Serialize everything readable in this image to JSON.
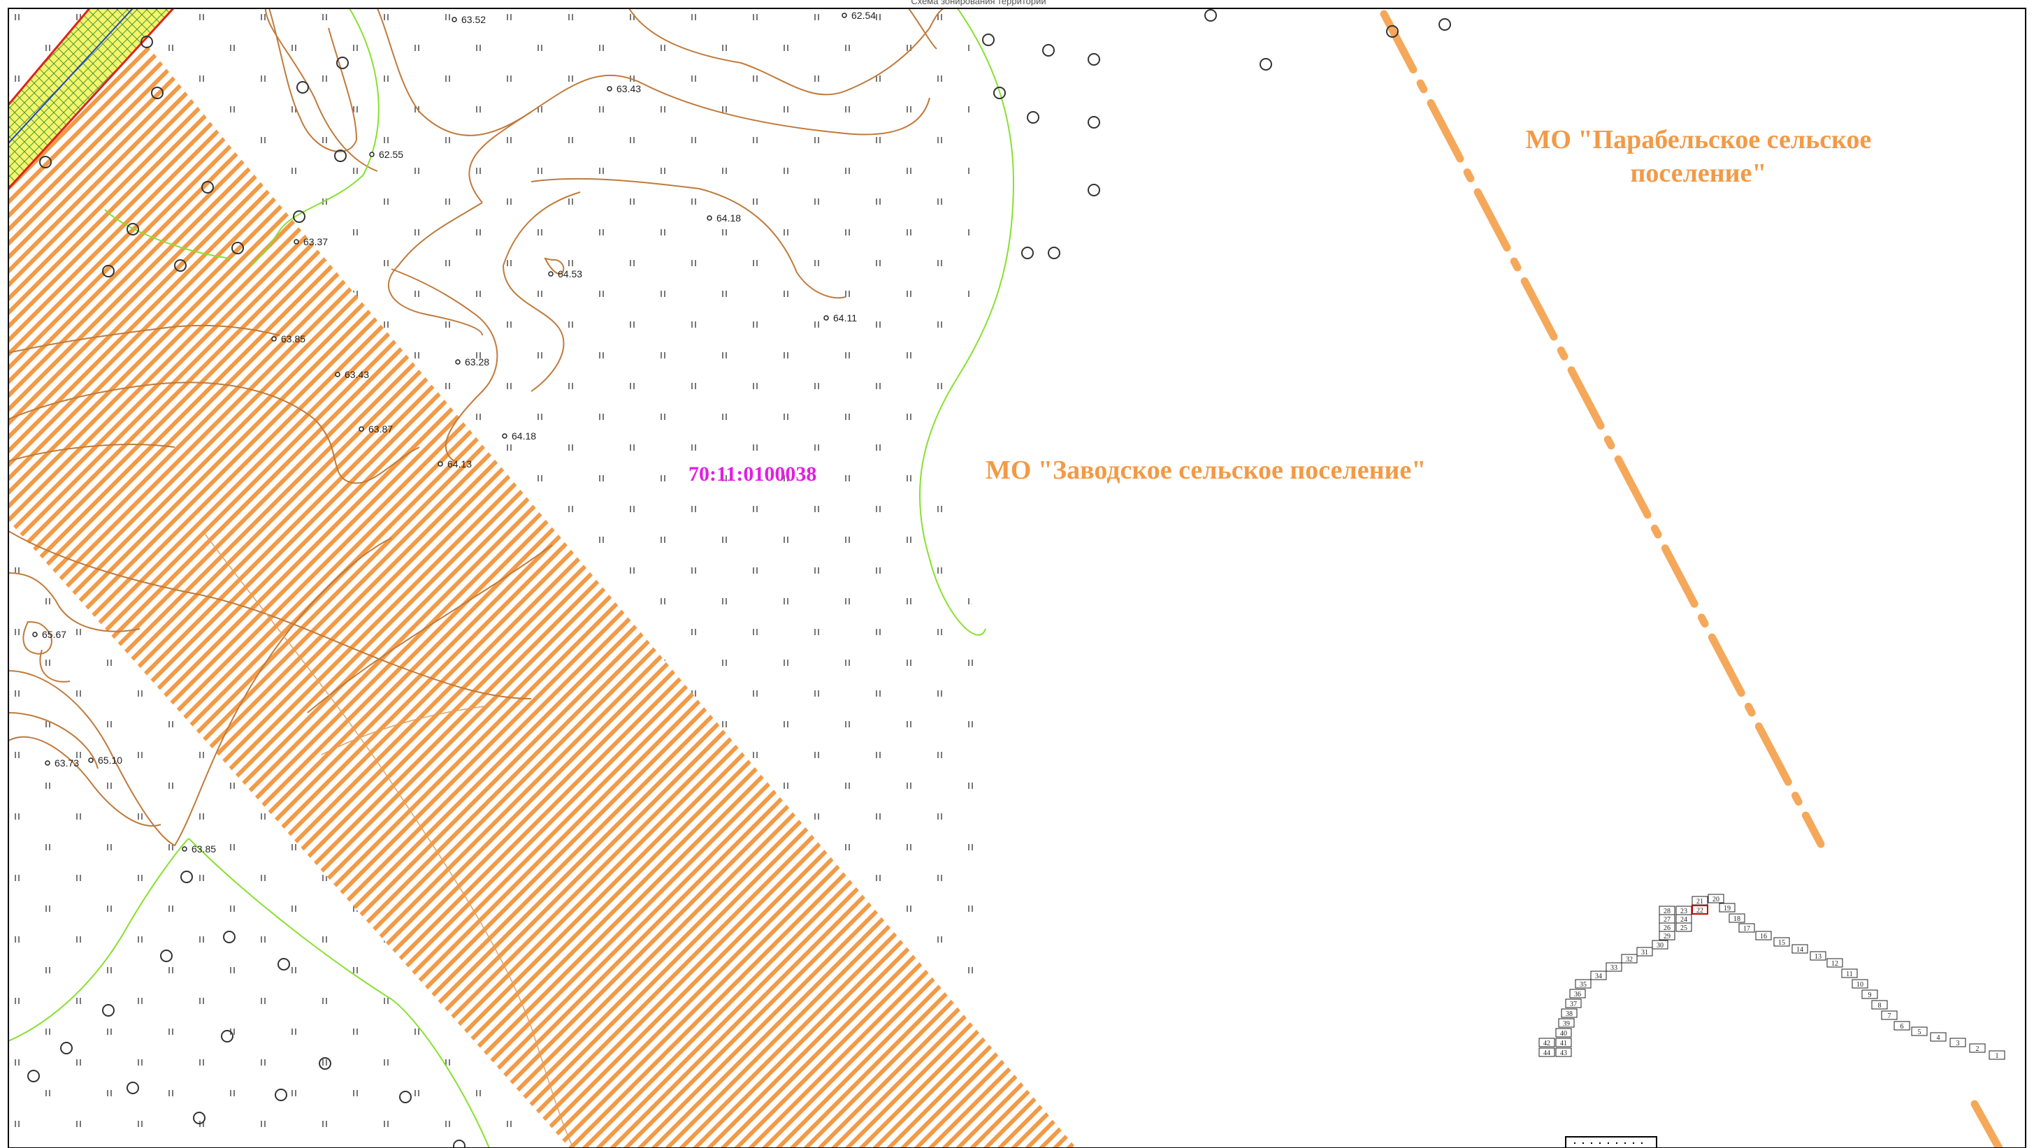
{
  "map": {
    "top_caption": "Схема зонирования территорий",
    "cadastral_number": "70:11:0100038",
    "region_labels": [
      "МО \"Парабельское сельское",
      "поселение\"",
      "МО \"Заводское сельское поселение\""
    ],
    "elevations": [
      "63.52",
      "62.54",
      "63.43",
      "62.55",
      "64.18",
      "63.37",
      "64.53",
      "64.11",
      "63.85",
      "63.28",
      "63.43",
      "63.87",
      "64.18",
      "64.13",
      "65.67",
      "63.73",
      "65.10",
      "63.85"
    ],
    "index_sheets": [
      "1",
      "2",
      "3",
      "4",
      "5",
      "6",
      "7",
      "8",
      "9",
      "10",
      "11",
      "12",
      "13",
      "14",
      "15",
      "16",
      "17",
      "18",
      "19",
      "20",
      "21",
      "22",
      "23",
      "24",
      "25",
      "26",
      "27",
      "28",
      "29",
      "30",
      "31",
      "32",
      "33",
      "34",
      "35",
      "36",
      "37",
      "38",
      "39",
      "40",
      "41",
      "42",
      "43",
      "44"
    ],
    "highlighted_sheet": "22",
    "colors": {
      "hatch_zone": "#f29a46",
      "region_label": "#f29a46",
      "cadastral_label": "#e020e0",
      "contour_line": "#c07a3a",
      "green_line": "#88e030",
      "boundary_line": "#f5a85a",
      "highlight_sheet": "#cc0000",
      "road_fill": "#f5f56a"
    },
    "icons": [
      "tree-symbol-icon",
      "elevation-point-icon",
      "meadow-symbol-icon"
    ]
  }
}
